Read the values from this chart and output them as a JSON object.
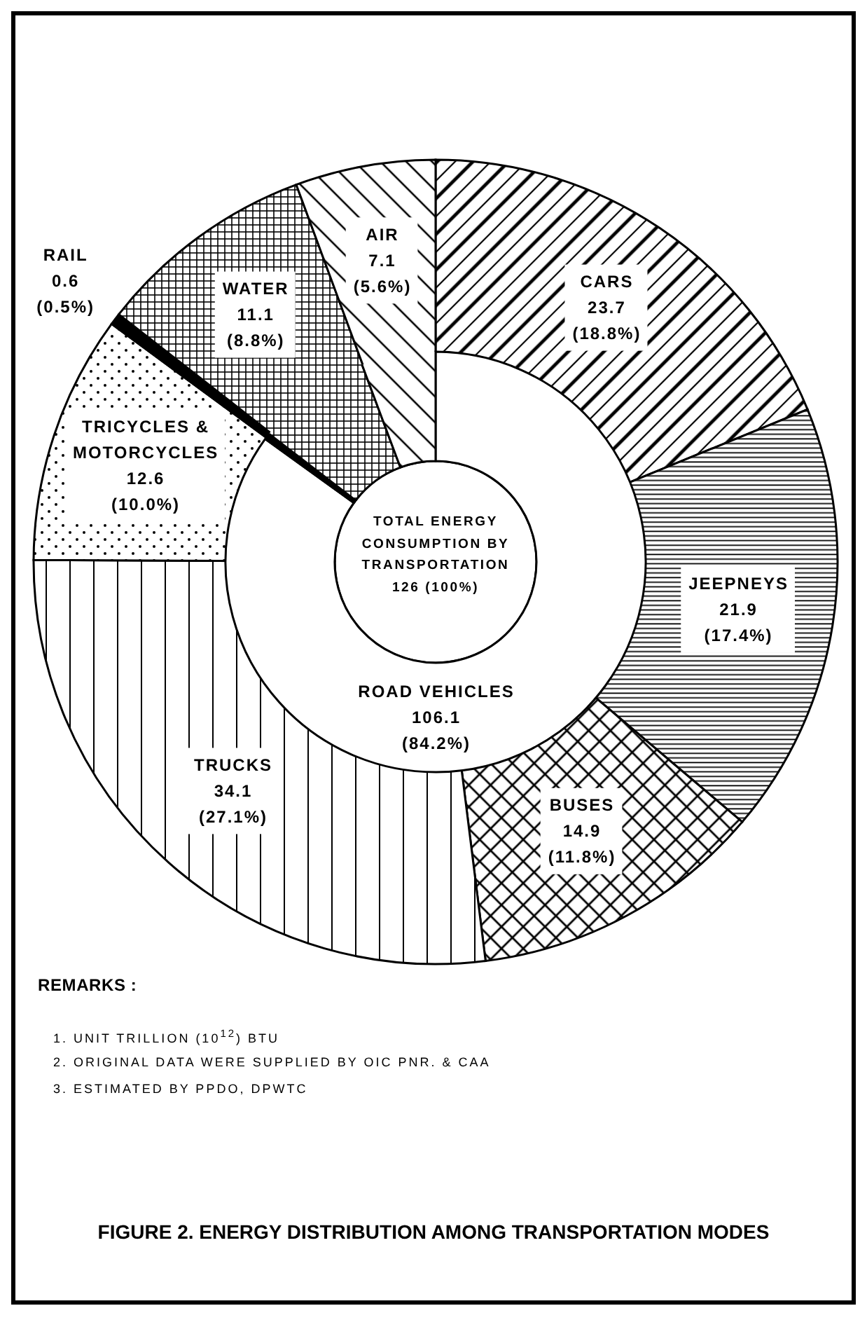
{
  "chart_data": [
    {
      "type": "donut",
      "title": "FIGURE 2. ENERGY DISTRIBUTION AMONG TRANSPORTATION MODES",
      "categories": [
        "CARS",
        "JEEPNEYS",
        "BUSES",
        "TRUCKS",
        "TRICYCLES &\nMOTORCYCLES",
        "RAIL",
        "WATER",
        "AIR"
      ],
      "values": [
        23.7,
        21.9,
        14.9,
        34.1,
        12.6,
        0.6,
        11.1,
        7.1
      ],
      "colors": [
        "#000000",
        "#000000",
        "#000000",
        "#000000",
        "#000000",
        "#000000",
        "#000000",
        "#000000"
      ],
      "value_labels": [
        "23.7\n(18.8%)",
        "21.9\n(17.4%)",
        "14.9\n(11.8%)",
        "34.1\n(27.1%)",
        "12.6\n(10.0%)",
        "0.6\n(0.5%)",
        "11.1\n(8.8%)",
        "7.1\n(5.6%)"
      ],
      "annotations": [
        "REMARKS :",
        "1. UNIT TRILLION (10$^{12}$) BTU",
        "2. ORIGINAL DATA WERE SUPPLIED BY OIC PNR. & CAA",
        "3. ESTIMATED BY PPDO, DPWTC"
      ]
    },
    {
      "type": "donut",
      "categories": [
        "ROAD VEHICLES",
        null,
        null,
        null
      ],
      "values": [
        106.1,
        0.6,
        11.1,
        7.1
      ],
      "colors": [
        "#ffffff",
        "#000000",
        "#000000",
        "#000000"
      ],
      "value_labels": [
        "106.1\n(84.2%)",
        null,
        null,
        null
      ],
      "annotations": [
        "TOTAL ENERGY\nCONSUMPTION BY\nTRANSPORTATION\n126 (100%)"
      ]
    }
  ]
}
